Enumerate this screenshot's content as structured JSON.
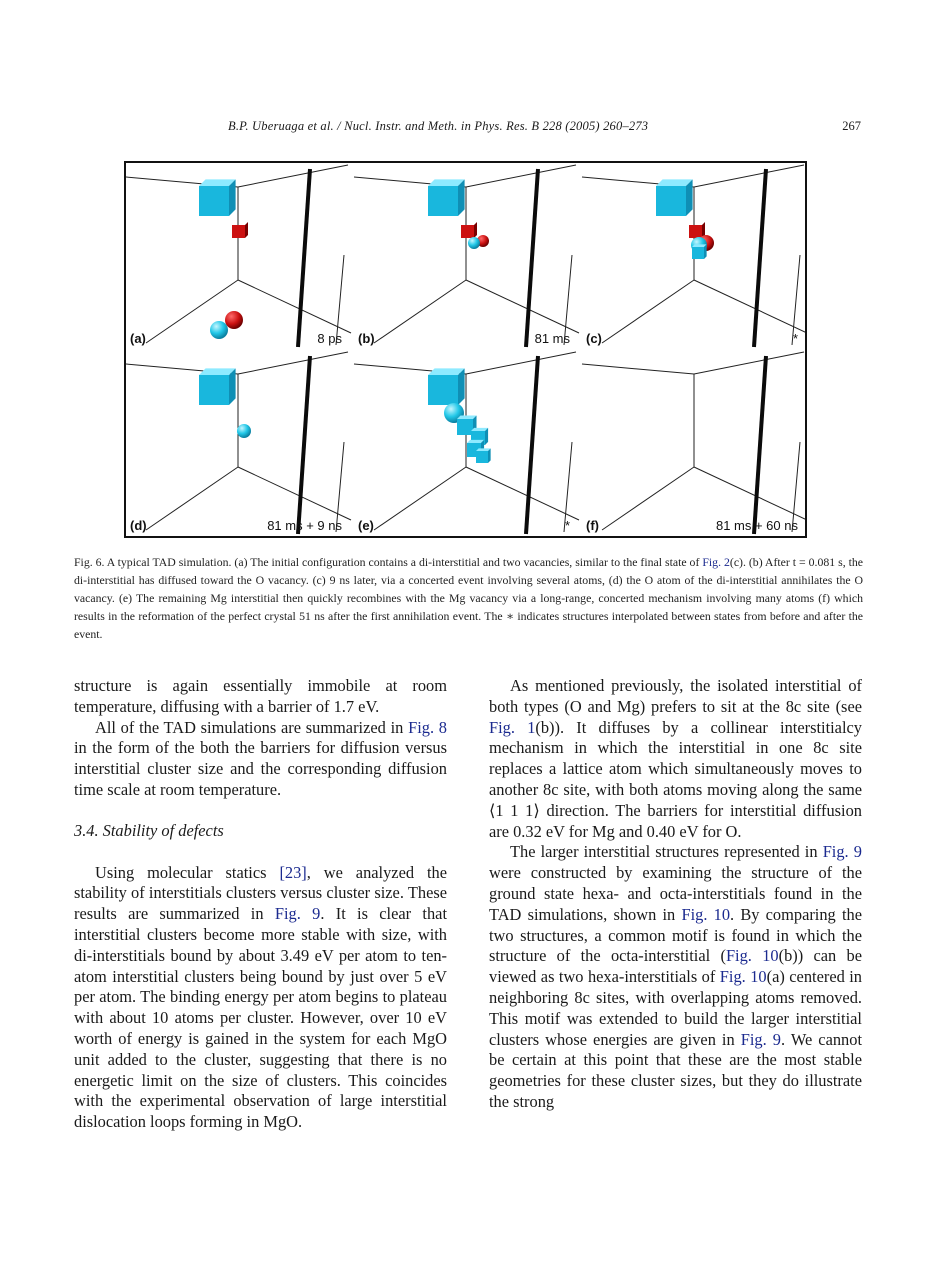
{
  "header": {
    "running_title": "B.P. Uberuaga et al. / Nucl. Instr. and Meth. in Phys. Res. B 228 (2005) 260–273",
    "page_number": "267"
  },
  "figure": {
    "panels": [
      {
        "label": "(a)",
        "time": "8 ps"
      },
      {
        "label": "(b)",
        "time": "81 ms"
      },
      {
        "label": "(c)",
        "time": "*"
      },
      {
        "label": "(d)",
        "time": "81 ms + 9 ns"
      },
      {
        "label": "(e)",
        "time": "*"
      },
      {
        "label": "(f)",
        "time": "81 ms + 60 ns"
      }
    ],
    "colors": {
      "oxygen": "#cc1111",
      "magnesium": "#22c8e8",
      "vacancy": "#19b7dd",
      "frame": "#111111"
    }
  },
  "caption": {
    "label": "Fig. 6.",
    "text_1": "A typical TAD simulation. (a) The initial configuration contains a di-interstitial and two vacancies, similar to the final state of",
    "link_1": "Fig. 2",
    "text_2": "(c). (b) After t = 0.081 s, the di-interstitial has diffused toward the O vacancy. (c) 9 ns later, via a concerted event involving several atoms, (d) the O atom of the di-interstitial annihilates the O vacancy. (e) The remaining Mg interstitial then quickly recombines with the Mg vacancy via a long-range, concerted mechanism involving many atoms (f) which results in the reformation of the perfect crystal 51 ns after the first annihilation event. The ∗ indicates structures interpolated between states from before and after the event."
  },
  "left_column": {
    "p1": "structure is again essentially immobile at room temperature, diffusing with a barrier of 1.7 eV.",
    "p2_a": "All of the TAD simulations are summarized in",
    "p2_link": "Fig. 8",
    "p2_b": "in the form of the both the barriers for diffusion versus interstitial cluster size and the corresponding diffusion time scale at room temperature.",
    "section_heading": "3.4. Stability of defects",
    "p3_a": "Using molecular statics",
    "p3_link1": "[23]",
    "p3_b": ", we analyzed the stability of interstitials clusters versus cluster size. These results are summarized in",
    "p3_link2": "Fig. 9",
    "p3_c": ". It is clear that interstitial clusters become more stable with size, with di-interstitials bound by about 3.49 eV per atom to ten-atom interstitial clusters being bound by just over 5 eV per atom. The binding energy per atom begins to plateau with about 10 atoms per cluster. However, over 10 eV worth of energy is gained in the system for each MgO unit added to the cluster, suggesting that there is no energetic limit on the size of clusters. This coincides with the experimental observation of large interstitial dislocation loops forming in MgO."
  },
  "right_column": {
    "p1_a": "As mentioned previously, the isolated interstitial of both types (O and Mg) prefers to sit at the 8c site (see",
    "p1_link": "Fig. 1",
    "p1_b": "(b)). It diffuses by a collinear interstitialcy mechanism in which the interstitial in one 8c site replaces a lattice atom which simultaneously moves to another 8c site, with both atoms moving along the same ⟨1 1 1⟩ direction. The barriers for interstitial diffusion are 0.32 eV for Mg and 0.40 eV for O.",
    "p2_a": "The larger interstitial structures represented in",
    "p2_link1": "Fig. 9",
    "p2_b": "were constructed by examining the structure of the ground state hexa- and octa-interstitials found in the TAD simulations, shown in",
    "p2_link2": "Fig. 10",
    "p2_c": ". By comparing the two structures, a common motif is found in which the structure of the octa-interstitial (",
    "p2_link3": "Fig. 10",
    "p2_d": "(b)) can be viewed as two hexa-interstitials of",
    "p2_link4": "Fig. 10",
    "p2_e": "(a) centered in neighboring 8c sites, with overlapping atoms removed. This motif was extended to build the larger interstitial clusters whose energies are given in",
    "p2_link5": "Fig. 9",
    "p2_f": ". We cannot be certain at this point that these are the most stable geometries for these cluster sizes, but they do illustrate the strong"
  }
}
